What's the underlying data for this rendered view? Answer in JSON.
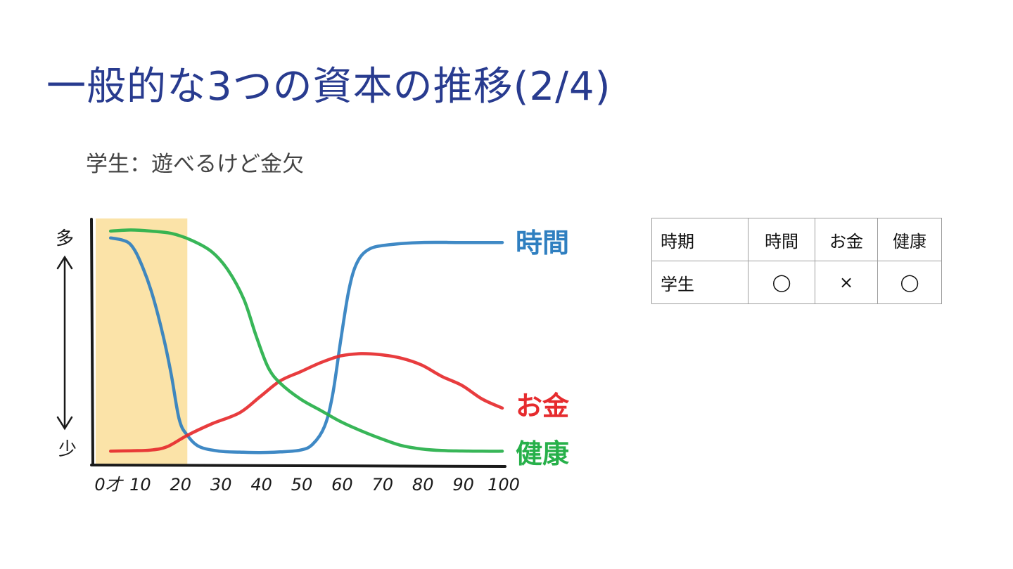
{
  "slide": {
    "title": "一般的な3つの資本の推移(2/4)",
    "subtitle": "学生：遊べるけど金欠"
  },
  "chart_data": {
    "type": "line",
    "x_ticks": [
      "0才",
      "10",
      "20",
      "30",
      "40",
      "50",
      "60",
      "70",
      "80",
      "90",
      "100"
    ],
    "xlim": [
      0,
      100
    ],
    "ylim": [
      0,
      100
    ],
    "y_labels": {
      "top": "多",
      "bottom": "少"
    },
    "highlight": {
      "x_from": 0,
      "x_to": 22,
      "color": "#fbe3a8"
    },
    "series": [
      {
        "name": "時間",
        "color": "#2f7fc0",
        "points": [
          [
            3,
            97
          ],
          [
            6,
            96
          ],
          [
            8,
            94
          ],
          [
            10,
            88
          ],
          [
            13,
            74
          ],
          [
            16,
            54
          ],
          [
            18,
            37
          ],
          [
            20,
            17
          ],
          [
            22,
            10
          ],
          [
            25,
            5
          ],
          [
            30,
            3
          ],
          [
            35,
            2.6
          ],
          [
            40,
            2.4
          ],
          [
            45,
            2.7
          ],
          [
            50,
            3.5
          ],
          [
            53,
            6
          ],
          [
            56,
            14
          ],
          [
            58,
            28
          ],
          [
            60,
            52
          ],
          [
            62,
            74
          ],
          [
            64,
            86
          ],
          [
            67,
            92
          ],
          [
            72,
            94
          ],
          [
            80,
            95
          ],
          [
            90,
            95
          ],
          [
            100,
            95
          ]
        ]
      },
      {
        "name": "お金",
        "color": "#e62b2e",
        "points": [
          [
            3,
            3
          ],
          [
            8,
            3.2
          ],
          [
            13,
            3.5
          ],
          [
            17,
            5
          ],
          [
            22,
            10
          ],
          [
            28,
            15
          ],
          [
            35,
            20
          ],
          [
            40,
            27
          ],
          [
            45,
            34
          ],
          [
            50,
            38
          ],
          [
            55,
            42
          ],
          [
            60,
            45
          ],
          [
            65,
            46
          ],
          [
            70,
            45.5
          ],
          [
            75,
            44
          ],
          [
            80,
            41
          ],
          [
            85,
            36
          ],
          [
            90,
            32
          ],
          [
            95,
            26
          ],
          [
            100,
            22
          ]
        ]
      },
      {
        "name": "健康",
        "color": "#27b04a",
        "points": [
          [
            3,
            100
          ],
          [
            8,
            100.5
          ],
          [
            13,
            100
          ],
          [
            18,
            99
          ],
          [
            23,
            96
          ],
          [
            28,
            91
          ],
          [
            32,
            83
          ],
          [
            36,
            70
          ],
          [
            39,
            54
          ],
          [
            42,
            40
          ],
          [
            45,
            33
          ],
          [
            50,
            26
          ],
          [
            55,
            21
          ],
          [
            60,
            16
          ],
          [
            65,
            12
          ],
          [
            70,
            8.5
          ],
          [
            75,
            5.5
          ],
          [
            80,
            4
          ],
          [
            85,
            3.3
          ],
          [
            90,
            3.1
          ],
          [
            95,
            3
          ],
          [
            100,
            3
          ]
        ]
      }
    ]
  },
  "table": {
    "headers": [
      "時期",
      "時間",
      "お金",
      "健康"
    ],
    "rows": [
      [
        "学生",
        "◯",
        "×",
        "◯"
      ]
    ]
  }
}
